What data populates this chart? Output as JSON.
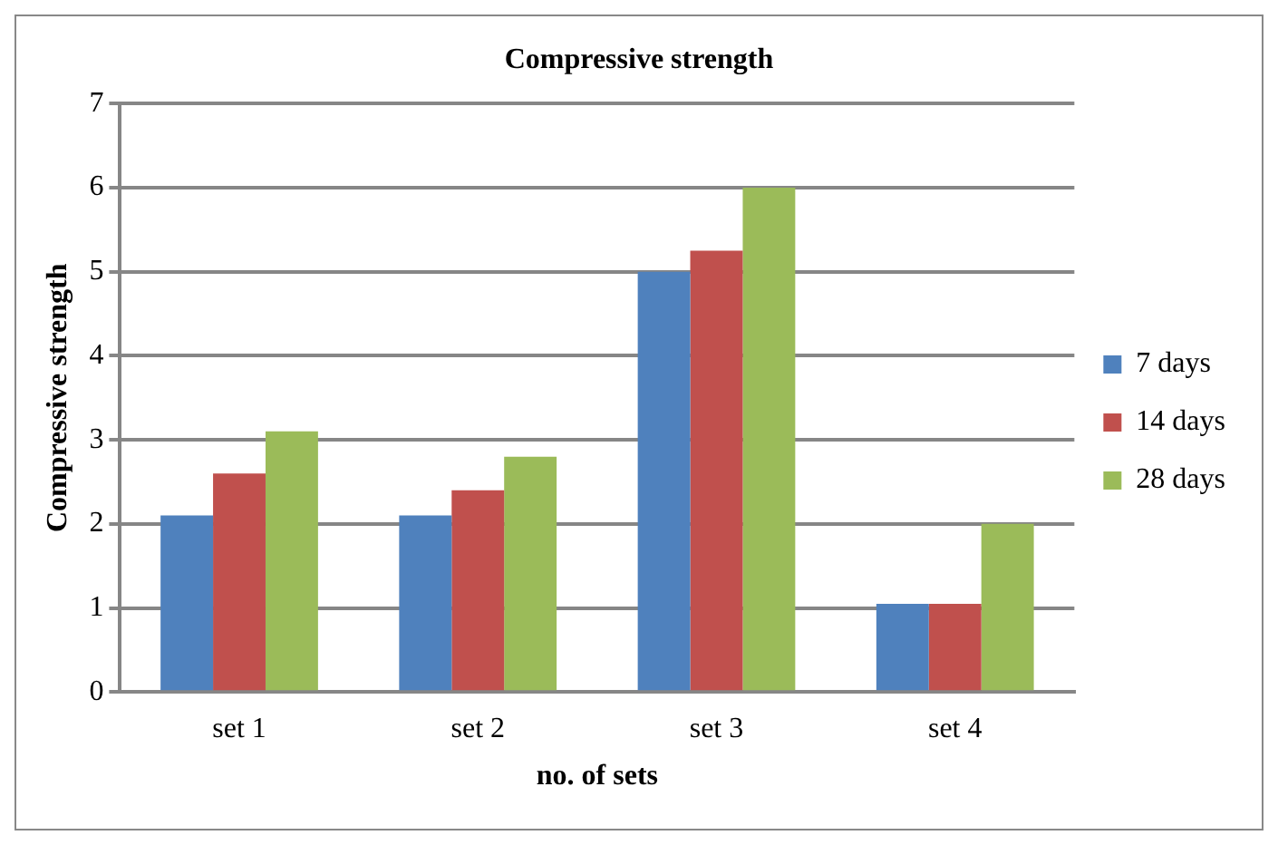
{
  "chart_data": {
    "type": "bar",
    "title": "Compressive strength",
    "xlabel": "no. of sets",
    "ylabel": "Compressive strength",
    "categories": [
      "set 1",
      "set 2",
      "set 3",
      "set 4"
    ],
    "series": [
      {
        "name": "7 days",
        "color": "#4f81bd",
        "values": [
          2.1,
          2.1,
          5.0,
          1.05
        ]
      },
      {
        "name": "14 days",
        "color": "#c0504d",
        "values": [
          2.6,
          2.4,
          5.25,
          1.05
        ]
      },
      {
        "name": "28 days",
        "color": "#9bbb59",
        "values": [
          3.1,
          2.8,
          6.0,
          2.0
        ]
      }
    ],
    "ylim": [
      0,
      7
    ],
    "yticks": [
      0,
      1,
      2,
      3,
      4,
      5,
      6,
      7
    ],
    "grid": "y",
    "legend": "right"
  }
}
